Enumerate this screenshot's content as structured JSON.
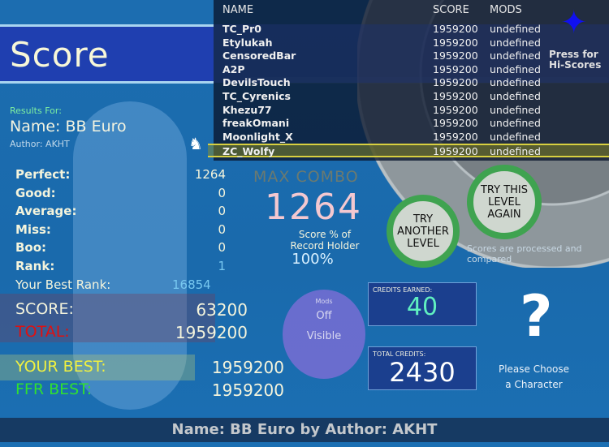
{
  "title": "Score",
  "results_for": "Results For:",
  "name_line": "Name: BB Euro",
  "author_line": "Author: AKHT",
  "stats": [
    {
      "label": "Perfect:",
      "value": "1264"
    },
    {
      "label": "Good:",
      "value": "0"
    },
    {
      "label": "Average:",
      "value": "0"
    },
    {
      "label": "Miss:",
      "value": "0"
    },
    {
      "label": "Boo:",
      "value": "0"
    },
    {
      "label": "Rank:",
      "value": "1"
    }
  ],
  "best_rank": {
    "label": "Your Best Rank:",
    "value": "16854"
  },
  "score": {
    "label": "SCORE:",
    "value": "63200"
  },
  "total": {
    "label": "TOTAL:",
    "value": "1959200"
  },
  "your_best": {
    "label": "YOUR BEST:",
    "value": "1959200"
  },
  "ffr_best": {
    "label": "FFR BEST:",
    "value": "1959200"
  },
  "max_combo": {
    "label": "MAX COMBO",
    "value": "1264"
  },
  "record": {
    "label1": "Score % of",
    "label2": "Record Holder",
    "value": "100%"
  },
  "mods": {
    "label": "Mods",
    "line1": "Off",
    "line2": "Visible"
  },
  "credits_earned": {
    "label": "CREDITS EARNED:",
    "value": "40"
  },
  "total_credits": {
    "label": "TOTAL CREDITS:",
    "value": "2430"
  },
  "character": {
    "symbol": "?",
    "label1": "Please Choose",
    "label2": "a Character"
  },
  "try_another": "TRY ANOTHER LEVEL",
  "try_again": "TRY THIS LEVEL AGAIN",
  "faded_note": "Scores are processed and compared",
  "hiscores": {
    "columns": [
      "NAME",
      "SCORE",
      "MODS"
    ],
    "button": "Press for Hi-Scores",
    "rows": [
      {
        "name": "TC_Pr0",
        "score": "1959200",
        "mods": "undefined"
      },
      {
        "name": "Etylukah",
        "score": "1959200",
        "mods": "undefined"
      },
      {
        "name": "CensoredBar",
        "score": "1959200",
        "mods": "undefined"
      },
      {
        "name": "A2P",
        "score": "1959200",
        "mods": "undefined"
      },
      {
        "name": "DevilsTouch",
        "score": "1959200",
        "mods": "undefined"
      },
      {
        "name": "TC_Cyrenics",
        "score": "1959200",
        "mods": "undefined"
      },
      {
        "name": "Khezu77",
        "score": "1959200",
        "mods": "undefined"
      },
      {
        "name": "freakOmani",
        "score": "1959200",
        "mods": "undefined"
      },
      {
        "name": "Moonlight_X",
        "score": "1959200",
        "mods": "undefined"
      },
      {
        "name": "ZC_Wolfy",
        "score": "1959200",
        "mods": "undefined"
      }
    ]
  },
  "footer": "Name:  BB  Euro  by  Author:  AKHT",
  "colors": {
    "background": "#1c6db0",
    "banner": "#1f3fb0",
    "total_label": "#e01010",
    "your_best_label": "#f0f040",
    "ffr_best_label": "#30e030",
    "combo_value": "#f4c8d0",
    "credits_earned_value": "#60f0c0",
    "highlight": "#d8d040"
  }
}
